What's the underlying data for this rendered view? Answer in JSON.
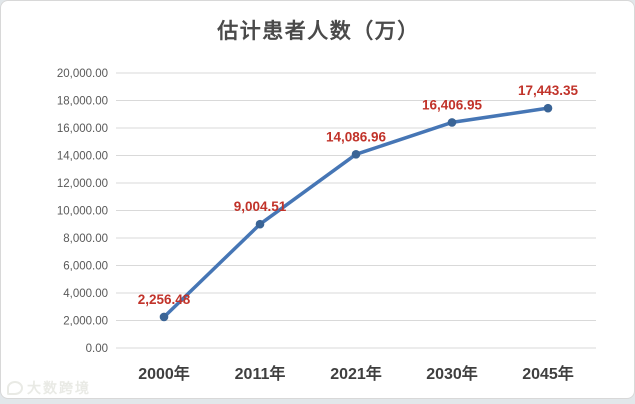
{
  "chart_data": {
    "type": "line",
    "title": "估计患者人数（万）",
    "categories": [
      "2000年",
      "2011年",
      "2021年",
      "2030年",
      "2045年"
    ],
    "series": [
      {
        "name": "估计患者人数",
        "values": [
          2256.48,
          9004.51,
          14086.96,
          16406.95,
          17443.35
        ]
      }
    ],
    "data_labels": [
      "2,256.48",
      "9,004.51",
      "14,086.96",
      "16,406.95",
      "17,443.35"
    ],
    "y_ticks": [
      "20,000.00",
      "18,000.00",
      "16,000.00",
      "14,000.00",
      "12,000.00",
      "10,000.00",
      "8,000.00",
      "6,000.00",
      "4,000.00",
      "2,000.00",
      "0.00"
    ],
    "ylim": [
      0,
      20000
    ],
    "y_tick_step": 2000,
    "xlabel": "",
    "ylabel": "",
    "grid": true,
    "legend": "none",
    "colors": {
      "line": "#4676B5",
      "marker": "#3A6496",
      "data_label": "#C1332A",
      "gridline": "#d9d9d9",
      "y_tick_text": "#595959",
      "x_tick_text": "#3f3f3f",
      "title_text": "#4a4a4a"
    }
  },
  "watermark": {
    "text": "大数跨境"
  }
}
